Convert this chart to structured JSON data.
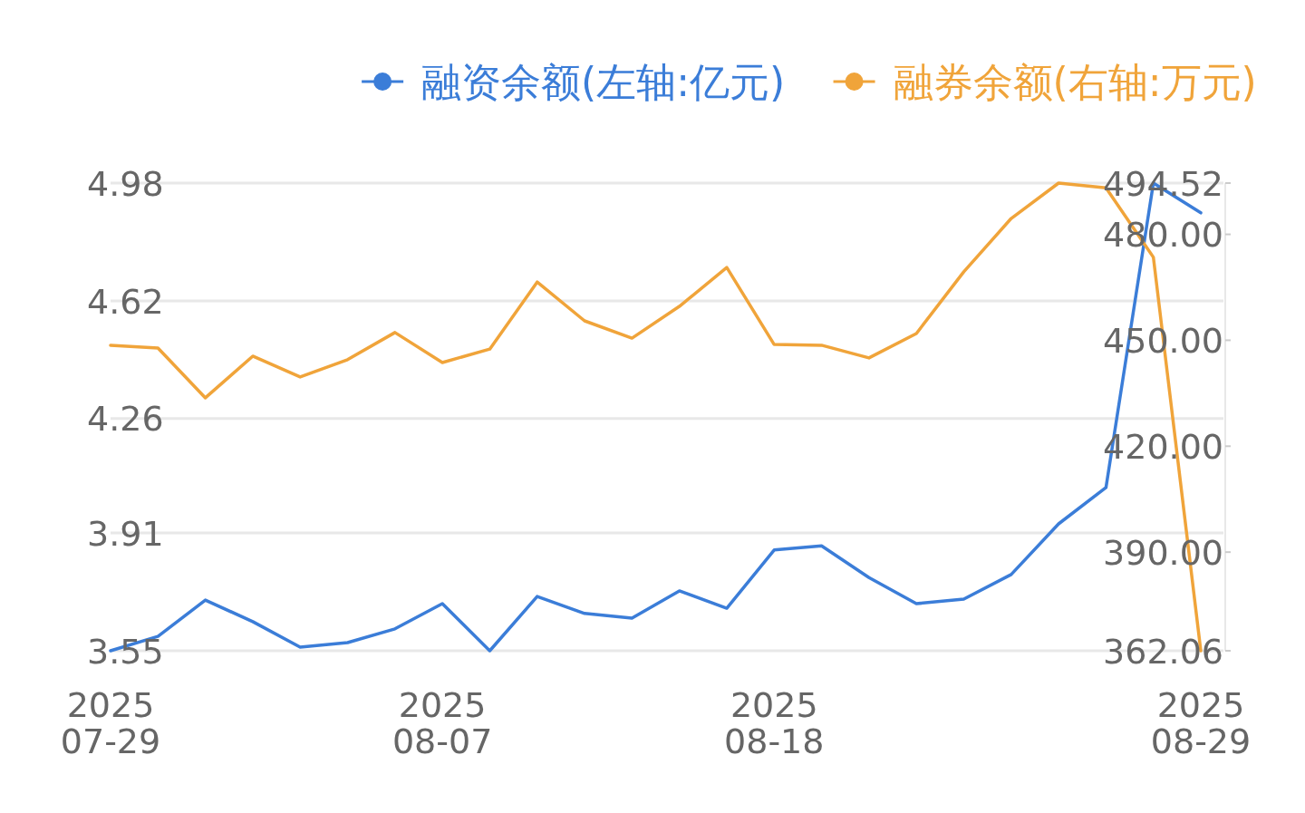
{
  "chart_data": {
    "type": "line",
    "categories": [
      "2025\n07-29",
      null,
      null,
      null,
      null,
      null,
      null,
      "2025\n08-07",
      null,
      null,
      null,
      null,
      null,
      null,
      "2025\n08-18",
      null,
      null,
      null,
      null,
      null,
      null,
      null,
      null,
      "2025\n08-29"
    ],
    "series": [
      {
        "name": "融资余额(左轴:亿元)",
        "color": "#3b7dd8",
        "values": [
          3.55,
          3.594,
          3.705,
          3.639,
          3.561,
          3.575,
          3.617,
          3.694,
          3.55,
          3.716,
          3.664,
          3.65,
          3.733,
          3.68,
          3.858,
          3.871,
          3.774,
          3.694,
          3.708,
          3.783,
          3.938,
          4.049,
          4.98,
          4.889
        ]
      },
      {
        "name": "融券余额(右轴:万元)",
        "color": "#f0a43a",
        "axis": "y2",
        "values": [
          448.6,
          447.8,
          433.7,
          445.5,
          439.6,
          444.5,
          452.2,
          443.7,
          447.5,
          466.5,
          455.5,
          450.6,
          459.6,
          470.6,
          448.8,
          448.6,
          445.0,
          451.9,
          469.4,
          484.5,
          494.52,
          493.2,
          473.5,
          362.06
        ]
      }
    ],
    "ylim": [
      3.55,
      4.98
    ],
    "yticks": [
      3.55,
      3.91,
      4.26,
      4.62,
      4.98
    ],
    "y2lim": [
      362.06,
      494.52
    ],
    "y2ticks": [
      362.06,
      {
        "value": 390,
        "label": "390.00"
      },
      {
        "value": 420,
        "label": "420.00"
      },
      {
        "value": 450,
        "label": "450.00"
      },
      {
        "value": 480,
        "label": "480.00"
      },
      494.52
    ],
    "grid": "y",
    "legend": "top right"
  }
}
